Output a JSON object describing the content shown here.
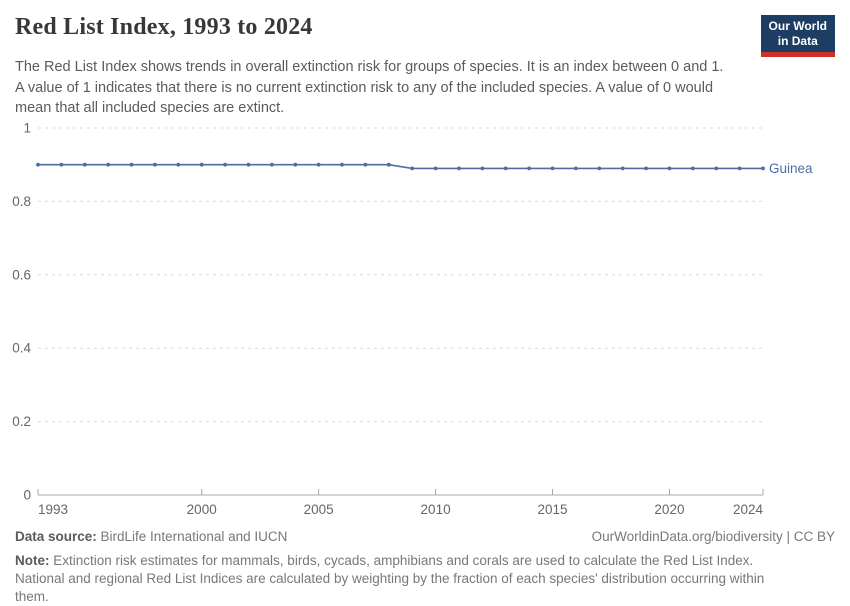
{
  "header": {
    "title": "Red List Index, 1993 to 2024",
    "subtitle_lines": [
      "The Red List Index shows trends in overall extinction risk for groups of species. It is an index between 0 and 1.",
      "A value of 1 indicates that there is no current extinction risk to any of the included species. A value of 0 would",
      "mean that all included species are extinct."
    ],
    "logo": {
      "line1": "Our World",
      "line2": "in Data",
      "bg_color": "#1d3d63",
      "stripe_color": "#cf3129"
    }
  },
  "chart_data": {
    "type": "line",
    "title": "Red List Index, 1993 to 2024",
    "x": [
      1993,
      1994,
      1995,
      1996,
      1997,
      1998,
      1999,
      2000,
      2001,
      2002,
      2003,
      2004,
      2005,
      2006,
      2007,
      2008,
      2009,
      2010,
      2011,
      2012,
      2013,
      2014,
      2015,
      2016,
      2017,
      2018,
      2019,
      2020,
      2021,
      2022,
      2023,
      2024
    ],
    "series": [
      {
        "name": "Guinea",
        "color": "#4e6da4",
        "values": [
          0.9,
          0.9,
          0.9,
          0.9,
          0.9,
          0.9,
          0.9,
          0.9,
          0.9,
          0.9,
          0.9,
          0.9,
          0.9,
          0.9,
          0.9,
          0.9,
          0.89,
          0.89,
          0.89,
          0.89,
          0.89,
          0.89,
          0.89,
          0.89,
          0.89,
          0.89,
          0.89,
          0.89,
          0.89,
          0.89,
          0.89,
          0.89
        ]
      }
    ],
    "xlim": [
      1993,
      2024
    ],
    "ylim": [
      0,
      1
    ],
    "x_ticks": [
      1993,
      2000,
      2005,
      2010,
      2015,
      2020,
      2024
    ],
    "y_ticks": [
      0,
      0.2,
      0.4,
      0.6,
      0.8,
      1
    ],
    "grid": "horizontal-dashed",
    "legend": "end-of-line-label",
    "colors": {
      "grid": "#d9d9d9",
      "axis": "#a8a8a8",
      "tick_label": "#666666"
    }
  },
  "footer": {
    "datasource_label": "Data source:",
    "datasource_value": " BirdLife International and IUCN",
    "attribution": "OurWorldinData.org/biodiversity | CC BY",
    "note_label": "Note:",
    "note_value": " Extinction risk estimates for mammals, birds, cycads, amphibians and corals are used to calculate the Red List Index. National and regional Red List Indices are calculated by weighting by the fraction of each species' distribution occurring within them."
  }
}
